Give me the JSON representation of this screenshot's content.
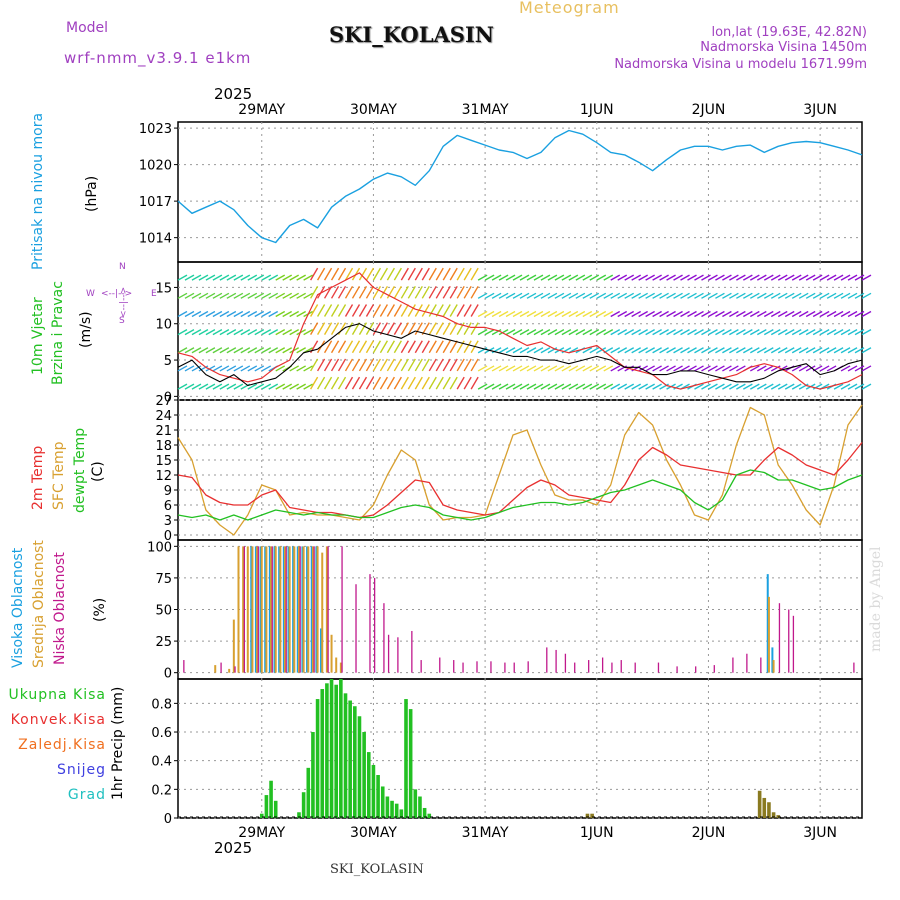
{
  "header": {
    "model_label": "Model",
    "model_value": "wrf-nmm_v3.9.1 e1km",
    "site": "SKI_KOLASIN",
    "meteogram": "Meteogram",
    "coords": "lon,lat (19.63E, 42.82N)",
    "elevation": "Nadmorska Visina 1450m",
    "model_elevation": "Nadmorska Visina u modelu 1671.99m"
  },
  "footer": {
    "site": "SKI_KOLASIN",
    "watermark": "made by Angel"
  },
  "time_axis": {
    "year_label": "2025",
    "days": [
      "29MAY",
      "30MAY",
      "31MAY",
      "1JUN",
      "2JUN",
      "3JUN"
    ],
    "start_hour_offset": -12,
    "end_hour": 135
  },
  "colors": {
    "pressure": "#1aa0e0",
    "temp2m": "#e83030",
    "sfc_temp": "#d8a030",
    "dewpt": "#22c022",
    "cloud_high": "#1aa0e0",
    "cloud_mid": "#d8a030",
    "cloud_low": "#c0188c",
    "precip_total": "#22c022",
    "precip_conv": "#e83030",
    "precip_frozen": "#f07020",
    "precip_snow": "#4040e0",
    "precip_hail": "#20c0c0",
    "wind_speed": "#000000",
    "wind_gust": "#e83030"
  },
  "legend": {
    "pressure": [
      "Pritisak na nivou mora",
      "(hPa)"
    ],
    "wind": [
      "10m Vjetar",
      "Brzina i Pravac",
      "(m/s)"
    ],
    "wind_rose": {
      "n": "N",
      "s": "S",
      "e": "E",
      "w": "W",
      "arrow_h": "<--|-->",
      "arrow_v": "<--|-->"
    },
    "temp": [
      "2m Temp",
      "SFC Temp",
      "dewpt Temp",
      "(C)"
    ],
    "cloud": [
      "Visoka Oblacnost",
      "Srednja Oblacnost",
      "Niska Oblacnost",
      "(%)"
    ],
    "precip_items": [
      "Ukupna Kisa",
      "Konvek.Kisa",
      "Zaledj.Kisa",
      "Snijeg",
      "Grad"
    ],
    "precip_unit": "1hr Precip (mm)"
  },
  "chart_data": [
    {
      "panel": "pressure",
      "type": "line",
      "ylabel": "(hPa)",
      "ylim": [
        1012,
        1023.5
      ],
      "yticks": [
        "1014",
        "1017",
        "1020",
        "1023"
      ],
      "series": [
        {
          "name": "Pritisak na nivou mora",
          "x": [
            -12,
            -9,
            -6,
            -3,
            0,
            3,
            6,
            9,
            12,
            15,
            18,
            21,
            24,
            27,
            30,
            33,
            36,
            39,
            42,
            45,
            48,
            51,
            54,
            57,
            60,
            63,
            66,
            69,
            72,
            75,
            78,
            81,
            84,
            87,
            90,
            93,
            96,
            99,
            102,
            105,
            108,
            111,
            114,
            117,
            120,
            123,
            126,
            129,
            132,
            135
          ],
          "values": [
            1017.0,
            1016.0,
            1016.5,
            1017.0,
            1016.3,
            1015.0,
            1014.0,
            1013.6,
            1015.0,
            1015.5,
            1014.8,
            1016.5,
            1017.4,
            1018.0,
            1018.8,
            1019.3,
            1019.0,
            1018.3,
            1019.5,
            1021.5,
            1022.4,
            1022.0,
            1021.6,
            1021.2,
            1021.0,
            1020.5,
            1021.0,
            1022.2,
            1022.8,
            1022.5,
            1021.8,
            1021.0,
            1020.8,
            1020.2,
            1019.5,
            1020.4,
            1021.2,
            1021.5,
            1021.5,
            1021.2,
            1021.5,
            1021.6,
            1021.0,
            1021.5,
            1021.8,
            1021.9,
            1021.8,
            1021.5,
            1021.2,
            1020.8
          ]
        }
      ]
    },
    {
      "panel": "wind",
      "type": "line",
      "ylabel": "(m/s)",
      "ylim": [
        -0.5,
        18.5
      ],
      "yticks": [
        "0",
        "5",
        "10",
        "15"
      ],
      "series": [
        {
          "name": "speed",
          "x": [
            -12,
            -9,
            -6,
            -3,
            0,
            3,
            6,
            9,
            12,
            15,
            18,
            21,
            24,
            27,
            30,
            33,
            36,
            39,
            42,
            45,
            48,
            51,
            54,
            57,
            60,
            63,
            66,
            69,
            72,
            75,
            78,
            81,
            84,
            87,
            90,
            93,
            96,
            99,
            102,
            105,
            108,
            111,
            114,
            117,
            120,
            123,
            126,
            129,
            132,
            135
          ],
          "values": [
            4.0,
            5.0,
            3.0,
            2.0,
            3.0,
            1.5,
            2.0,
            2.5,
            4.0,
            6.0,
            6.5,
            8.0,
            9.5,
            10.0,
            9.0,
            8.5,
            8.0,
            9.0,
            8.5,
            8.0,
            7.5,
            7.0,
            6.5,
            6.0,
            5.5,
            5.5,
            5.0,
            5.0,
            4.5,
            5.0,
            5.5,
            5.0,
            4.0,
            4.0,
            3.0,
            3.0,
            3.5,
            3.5,
            3.0,
            2.5,
            2.0,
            2.0,
            2.5,
            3.5,
            4.0,
            4.5,
            3.0,
            3.5,
            4.5,
            5.0
          ]
        },
        {
          "name": "gust",
          "x": [
            -12,
            -9,
            -6,
            -3,
            0,
            3,
            6,
            9,
            12,
            15,
            18,
            21,
            24,
            27,
            30,
            33,
            36,
            39,
            42,
            45,
            48,
            51,
            54,
            57,
            60,
            63,
            66,
            69,
            72,
            75,
            78,
            81,
            84,
            87,
            90,
            93,
            96,
            99,
            102,
            105,
            108,
            111,
            114,
            117,
            120,
            123,
            126,
            129,
            132,
            135
          ],
          "values": [
            6.0,
            5.5,
            4.0,
            3.0,
            2.5,
            2.0,
            2.5,
            4.0,
            5.0,
            10.0,
            14.0,
            15.0,
            16.0,
            17.0,
            15.0,
            14.0,
            13.0,
            12.0,
            11.5,
            11.0,
            10.0,
            9.5,
            9.5,
            9.0,
            8.0,
            7.0,
            7.5,
            6.5,
            6.0,
            6.5,
            7.0,
            5.5,
            4.0,
            3.5,
            3.0,
            1.5,
            1.0,
            1.5,
            2.0,
            2.5,
            3.0,
            4.0,
            4.5,
            4.0,
            3.0,
            1.5,
            1.0,
            1.5,
            2.0,
            3.0
          ]
        }
      ]
    },
    {
      "panel": "temperature",
      "type": "line",
      "ylabel": "(C)",
      "ylim": [
        -1,
        27
      ],
      "yticks": [
        "0",
        "3",
        "6",
        "9",
        "12",
        "15",
        "18",
        "21",
        "24",
        "27"
      ],
      "series": [
        {
          "name": "2m Temp",
          "x": [
            -12,
            -9,
            -6,
            -3,
            0,
            3,
            6,
            9,
            12,
            15,
            18,
            21,
            24,
            27,
            30,
            33,
            36,
            39,
            42,
            45,
            48,
            51,
            54,
            57,
            60,
            63,
            66,
            69,
            72,
            75,
            78,
            81,
            84,
            87,
            90,
            93,
            96,
            99,
            102,
            105,
            108,
            111,
            114,
            117,
            120,
            123,
            126,
            129,
            132,
            135
          ],
          "values": [
            12.0,
            11.5,
            8.0,
            6.5,
            6.0,
            6.0,
            8.0,
            9.0,
            5.5,
            5.0,
            4.5,
            4.5,
            4.0,
            3.5,
            4.0,
            6.0,
            8.5,
            11.0,
            10.5,
            6.0,
            5.0,
            4.5,
            4.0,
            4.5,
            7.0,
            9.5,
            11.0,
            10.0,
            8.0,
            7.5,
            7.0,
            6.5,
            10.0,
            15.0,
            17.5,
            16.0,
            14.0,
            13.5,
            13.0,
            12.5,
            12.0,
            12.0,
            15.0,
            17.5,
            16.0,
            14.0,
            13.0,
            12.0,
            15.0,
            18.5
          ]
        },
        {
          "name": "SFC Temp",
          "x": [
            -12,
            -9,
            -6,
            -3,
            0,
            3,
            6,
            9,
            12,
            15,
            18,
            21,
            24,
            27,
            30,
            33,
            36,
            39,
            42,
            45,
            48,
            51,
            54,
            57,
            60,
            63,
            66,
            69,
            72,
            75,
            78,
            81,
            84,
            87,
            90,
            93,
            96,
            99,
            102,
            105,
            108,
            111,
            114,
            117,
            120,
            123,
            126,
            129,
            132,
            135
          ],
          "values": [
            19.5,
            15.0,
            5.0,
            2.0,
            0.0,
            4.0,
            10.0,
            9.0,
            4.0,
            4.5,
            4.0,
            4.0,
            3.5,
            3.0,
            6.0,
            12.0,
            17.0,
            15.0,
            6.0,
            3.0,
            3.5,
            3.5,
            4.0,
            12.0,
            20.0,
            21.0,
            14.0,
            8.0,
            7.0,
            7.0,
            6.0,
            10.0,
            20.0,
            24.5,
            22.0,
            15.0,
            10.0,
            4.0,
            3.0,
            8.0,
            18.0,
            25.5,
            24.0,
            14.0,
            10.0,
            5.0,
            2.0,
            10.0,
            22.0,
            26.0
          ]
        },
        {
          "name": "dewpt Temp",
          "x": [
            -12,
            -9,
            -6,
            -3,
            0,
            3,
            6,
            9,
            12,
            15,
            18,
            21,
            24,
            27,
            30,
            33,
            36,
            39,
            42,
            45,
            48,
            51,
            54,
            57,
            60,
            63,
            66,
            69,
            72,
            75,
            78,
            81,
            84,
            87,
            90,
            93,
            96,
            99,
            102,
            105,
            108,
            111,
            114,
            117,
            120,
            123,
            126,
            129,
            132,
            135
          ],
          "values": [
            4.0,
            3.5,
            4.0,
            3.0,
            4.0,
            3.0,
            4.0,
            5.0,
            4.5,
            4.0,
            4.5,
            4.0,
            4.0,
            3.5,
            3.5,
            4.5,
            5.5,
            6.0,
            5.5,
            4.0,
            3.5,
            3.0,
            3.5,
            4.5,
            5.5,
            6.0,
            6.5,
            6.5,
            6.0,
            6.5,
            7.5,
            8.5,
            9.0,
            10.0,
            11.0,
            10.0,
            9.0,
            6.5,
            5.0,
            7.0,
            12.0,
            13.0,
            12.5,
            11.0,
            11.0,
            10.0,
            9.0,
            9.5,
            11.0,
            12.0
          ]
        }
      ]
    },
    {
      "panel": "cloud",
      "type": "bar",
      "ylabel": "(%)",
      "ylim": [
        -5,
        105
      ],
      "yticks": [
        "0",
        "25",
        "50",
        "75",
        "100"
      ],
      "series": [
        {
          "name": "Visoka Oblacnost",
          "x": [
            4,
            5,
            6,
            7,
            8,
            9,
            10,
            11,
            12,
            13,
            14,
            15,
            16,
            17,
            18,
            19,
            115,
            116
          ],
          "values": [
            100,
            100,
            100,
            100,
            100,
            100,
            100,
            100,
            100,
            100,
            100,
            100,
            100,
            100,
            100,
            35,
            78,
            20
          ]
        },
        {
          "name": "Srednja Oblacnost",
          "x": [
            0,
            1,
            2,
            3,
            4,
            5,
            6,
            7,
            8,
            9,
            10,
            11,
            12,
            13,
            14,
            15,
            16,
            17,
            18,
            19,
            20,
            21,
            22,
            23,
            115,
            116,
            -4,
            -1
          ],
          "values": [
            42,
            100,
            100,
            100,
            100,
            100,
            100,
            100,
            100,
            100,
            100,
            100,
            100,
            100,
            100,
            100,
            100,
            100,
            100,
            95,
            100,
            30,
            12,
            8,
            60,
            10,
            6,
            3
          ]
        },
        {
          "name": "Niska Oblacnost",
          "x": [
            -11,
            -3,
            0,
            2,
            5,
            8,
            11,
            14,
            17,
            20,
            23,
            26,
            29,
            30,
            32,
            33,
            35,
            38,
            40,
            44,
            47,
            49,
            52,
            55,
            58,
            60,
            63,
            67,
            69,
            71,
            73,
            76,
            79,
            81,
            83,
            86,
            91,
            95,
            99,
            103,
            107,
            110,
            113,
            117,
            119,
            120,
            133
          ],
          "values": [
            10,
            8,
            5,
            100,
            100,
            100,
            100,
            100,
            100,
            100,
            100,
            70,
            78,
            75,
            55,
            30,
            28,
            33,
            10,
            12,
            10,
            8,
            9,
            9,
            8,
            8,
            9,
            20,
            18,
            15,
            8,
            10,
            12,
            8,
            10,
            8,
            8,
            5,
            5,
            6,
            12,
            15,
            12,
            55,
            50,
            45,
            8
          ]
        }
      ]
    },
    {
      "panel": "precip",
      "type": "bar",
      "ylabel": "1hr Precip (mm)",
      "ylim": [
        0,
        0.97
      ],
      "yticks": [
        "0",
        "0.2",
        "0.4",
        "0.6",
        "0.8"
      ],
      "series": [
        {
          "name": "Ukupna Kisa",
          "x": [
            6,
            7,
            8,
            9,
            14,
            15,
            16,
            17,
            18,
            19,
            20,
            21,
            22,
            23,
            24,
            25,
            26,
            27,
            28,
            29,
            30,
            31,
            32,
            33,
            34,
            35,
            36,
            37,
            38,
            39,
            40,
            41,
            42
          ],
          "values": [
            0.03,
            0.16,
            0.26,
            0.12,
            0.04,
            0.18,
            0.35,
            0.6,
            0.83,
            0.9,
            0.94,
            0.97,
            0.93,
            0.97,
            0.87,
            0.82,
            0.78,
            0.71,
            0.6,
            0.46,
            0.37,
            0.3,
            0.22,
            0.15,
            0.12,
            0.1,
            0.06,
            0.83,
            0.76,
            0.2,
            0.15,
            0.07,
            0.03
          ]
        },
        {
          "name": "Zaledj.Kisa",
          "x": [
            76,
            77,
            113,
            114,
            115,
            116,
            117
          ],
          "values": [
            0.03,
            0.03,
            0.19,
            0.14,
            0.11,
            0.04,
            0.02
          ]
        }
      ]
    }
  ]
}
